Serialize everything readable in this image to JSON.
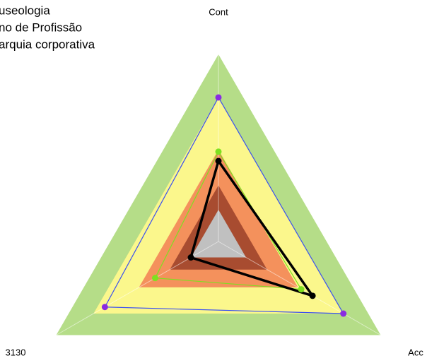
{
  "chart_data": {
    "type": "radar",
    "categories": [
      "Cont",
      "Acc",
      "3130"
    ],
    "rlim": [
      0,
      100
    ],
    "bands": [
      {
        "value": 100,
        "color": "#b5dd88"
      },
      {
        "value": 77,
        "color": "#fbf78c"
      },
      {
        "value": 49,
        "color": "#f4915c"
      },
      {
        "value": 30,
        "color": "#a84c30"
      },
      {
        "value": 17,
        "color": "#c0c0c0"
      }
    ],
    "series": [
      {
        "name": "useologia",
        "color": "#3a50f0",
        "marker_color": "#8a2be2",
        "values": [
          77,
          77,
          70
        ]
      },
      {
        "name": "no de Profissão",
        "color": "#7ee020",
        "marker_color": "#7ee020",
        "values": [
          48,
          51,
          39
        ]
      },
      {
        "name": "arquia corporativa",
        "color": "#000000",
        "marker_color": "#000000",
        "values": [
          43,
          58,
          17
        ]
      }
    ]
  }
}
